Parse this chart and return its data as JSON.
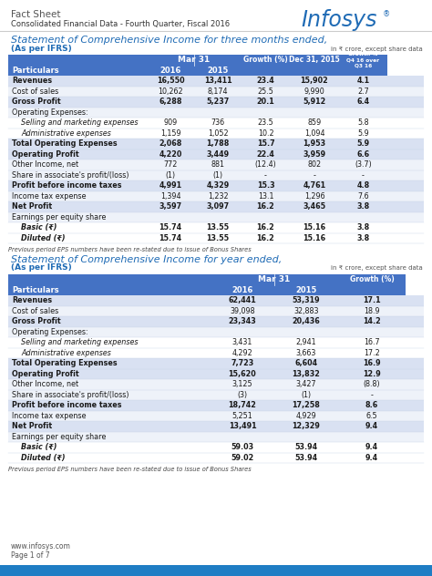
{
  "title_factsheet": "Fact Sheet",
  "subtitle": "Consolidated Financial Data - Fourth Quarter, Fiscal 2016",
  "infosys_color": "#1F6BB5",
  "section1_title": "Statement of Comprehensive Income for three months ended,",
  "section1_subtitle": "(As per IFRS)",
  "crore_note": "in ₹ crore, except share data",
  "section2_title": "Statement of Comprehensive Income for year ended,",
  "section2_subtitle": "(As per IFRS)",
  "eps_note": "Previous period EPS numbers have been re-stated due to issue of Bonus Shares",
  "footer1": "www.infosys.com",
  "footer2": "Page 1 of 7",
  "header_bg": "#4472C4",
  "header_text": "#FFFFFF",
  "row_bold_bg": "#D9E1F2",
  "row_light_bg": "#EEF2F9",
  "row_white_bg": "#FFFFFF",
  "bottom_bar_color": "#1F7DC4",
  "table1_rows": [
    {
      "label": "Revenues",
      "bold": true,
      "indent": false,
      "section_hdr": false,
      "vals": [
        "16,550",
        "13,411",
        "23.4",
        "15,902",
        "4.1"
      ]
    },
    {
      "label": "Cost of sales",
      "bold": false,
      "indent": false,
      "section_hdr": false,
      "vals": [
        "10,262",
        "8,174",
        "25.5",
        "9,990",
        "2.7"
      ]
    },
    {
      "label": "Gross Profit",
      "bold": true,
      "indent": false,
      "section_hdr": false,
      "vals": [
        "6,288",
        "5,237",
        "20.1",
        "5,912",
        "6.4"
      ]
    },
    {
      "label": "Operating Expenses:",
      "bold": false,
      "indent": false,
      "section_hdr": true,
      "vals": [
        "",
        "",
        "",
        "",
        ""
      ]
    },
    {
      "label": "Selling and marketing expenses",
      "bold": false,
      "indent": true,
      "section_hdr": false,
      "vals": [
        "909",
        "736",
        "23.5",
        "859",
        "5.8"
      ]
    },
    {
      "label": "Administrative expenses",
      "bold": false,
      "indent": true,
      "section_hdr": false,
      "vals": [
        "1,159",
        "1,052",
        "10.2",
        "1,094",
        "5.9"
      ]
    },
    {
      "label": "Total Operating Expenses",
      "bold": true,
      "indent": false,
      "section_hdr": false,
      "vals": [
        "2,068",
        "1,788",
        "15.7",
        "1,953",
        "5.9"
      ]
    },
    {
      "label": "Operating Profit",
      "bold": true,
      "indent": false,
      "section_hdr": false,
      "vals": [
        "4,220",
        "3,449",
        "22.4",
        "3,959",
        "6.6"
      ]
    },
    {
      "label": "Other Income, net",
      "bold": false,
      "indent": false,
      "section_hdr": false,
      "vals": [
        "772",
        "881",
        "(12.4)",
        "802",
        "(3.7)"
      ]
    },
    {
      "label": "Share in associate's profit/(loss)",
      "bold": false,
      "indent": false,
      "section_hdr": false,
      "vals": [
        "(1)",
        "(1)",
        "-",
        "-",
        "-"
      ]
    },
    {
      "label": "Profit before income taxes",
      "bold": true,
      "indent": false,
      "section_hdr": false,
      "vals": [
        "4,991",
        "4,329",
        "15.3",
        "4,761",
        "4.8"
      ]
    },
    {
      "label": "Income tax expense",
      "bold": false,
      "indent": false,
      "section_hdr": false,
      "vals": [
        "1,394",
        "1,232",
        "13.1",
        "1,296",
        "7.6"
      ]
    },
    {
      "label": "Net Profit",
      "bold": true,
      "indent": false,
      "section_hdr": false,
      "vals": [
        "3,597",
        "3,097",
        "16.2",
        "3,465",
        "3.8"
      ]
    },
    {
      "label": "Earnings per equity share",
      "bold": false,
      "indent": false,
      "section_hdr": true,
      "vals": [
        "",
        "",
        "",
        "",
        ""
      ]
    },
    {
      "label": "Basic (₹)",
      "bold": true,
      "indent": true,
      "section_hdr": false,
      "vals": [
        "15.74",
        "13.55",
        "16.2",
        "15.16",
        "3.8"
      ]
    },
    {
      "label": "Diluted (₹)",
      "bold": true,
      "indent": true,
      "section_hdr": false,
      "vals": [
        "15.74",
        "13.55",
        "16.2",
        "15.16",
        "3.8"
      ]
    }
  ],
  "table2_rows": [
    {
      "label": "Revenues",
      "bold": true,
      "indent": false,
      "section_hdr": false,
      "vals": [
        "62,441",
        "53,319",
        "17.1"
      ]
    },
    {
      "label": "Cost of sales",
      "bold": false,
      "indent": false,
      "section_hdr": false,
      "vals": [
        "39,098",
        "32,883",
        "18.9"
      ]
    },
    {
      "label": "Gross Profit",
      "bold": true,
      "indent": false,
      "section_hdr": false,
      "vals": [
        "23,343",
        "20,436",
        "14.2"
      ]
    },
    {
      "label": "Operating Expenses:",
      "bold": false,
      "indent": false,
      "section_hdr": true,
      "vals": [
        "",
        "",
        ""
      ]
    },
    {
      "label": "Selling and marketing expenses",
      "bold": false,
      "indent": true,
      "section_hdr": false,
      "vals": [
        "3,431",
        "2,941",
        "16.7"
      ]
    },
    {
      "label": "Administrative expenses",
      "bold": false,
      "indent": true,
      "section_hdr": false,
      "vals": [
        "4,292",
        "3,663",
        "17.2"
      ]
    },
    {
      "label": "Total Operating Expenses",
      "bold": true,
      "indent": false,
      "section_hdr": false,
      "vals": [
        "7,723",
        "6,604",
        "16.9"
      ]
    },
    {
      "label": "Operating Profit",
      "bold": true,
      "indent": false,
      "section_hdr": false,
      "vals": [
        "15,620",
        "13,832",
        "12.9"
      ]
    },
    {
      "label": "Other Income, net",
      "bold": false,
      "indent": false,
      "section_hdr": false,
      "vals": [
        "3,125",
        "3,427",
        "(8.8)"
      ]
    },
    {
      "label": "Share in associate's profit/(loss)",
      "bold": false,
      "indent": false,
      "section_hdr": false,
      "vals": [
        "(3)",
        "(1)",
        "-"
      ]
    },
    {
      "label": "Profit before income taxes",
      "bold": true,
      "indent": false,
      "section_hdr": false,
      "vals": [
        "18,742",
        "17,258",
        "8.6"
      ]
    },
    {
      "label": "Income tax expense",
      "bold": false,
      "indent": false,
      "section_hdr": false,
      "vals": [
        "5,251",
        "4,929",
        "6.5"
      ]
    },
    {
      "label": "Net Profit",
      "bold": true,
      "indent": false,
      "section_hdr": false,
      "vals": [
        "13,491",
        "12,329",
        "9.4"
      ]
    },
    {
      "label": "Earnings per equity share",
      "bold": false,
      "indent": false,
      "section_hdr": true,
      "vals": [
        "",
        "",
        ""
      ]
    },
    {
      "label": "Basic (₹)",
      "bold": true,
      "indent": true,
      "section_hdr": false,
      "vals": [
        "59.03",
        "53.94",
        "9.4"
      ]
    },
    {
      "label": "Diluted (₹)",
      "bold": true,
      "indent": true,
      "section_hdr": false,
      "vals": [
        "59.02",
        "53.94",
        "9.4"
      ]
    }
  ]
}
